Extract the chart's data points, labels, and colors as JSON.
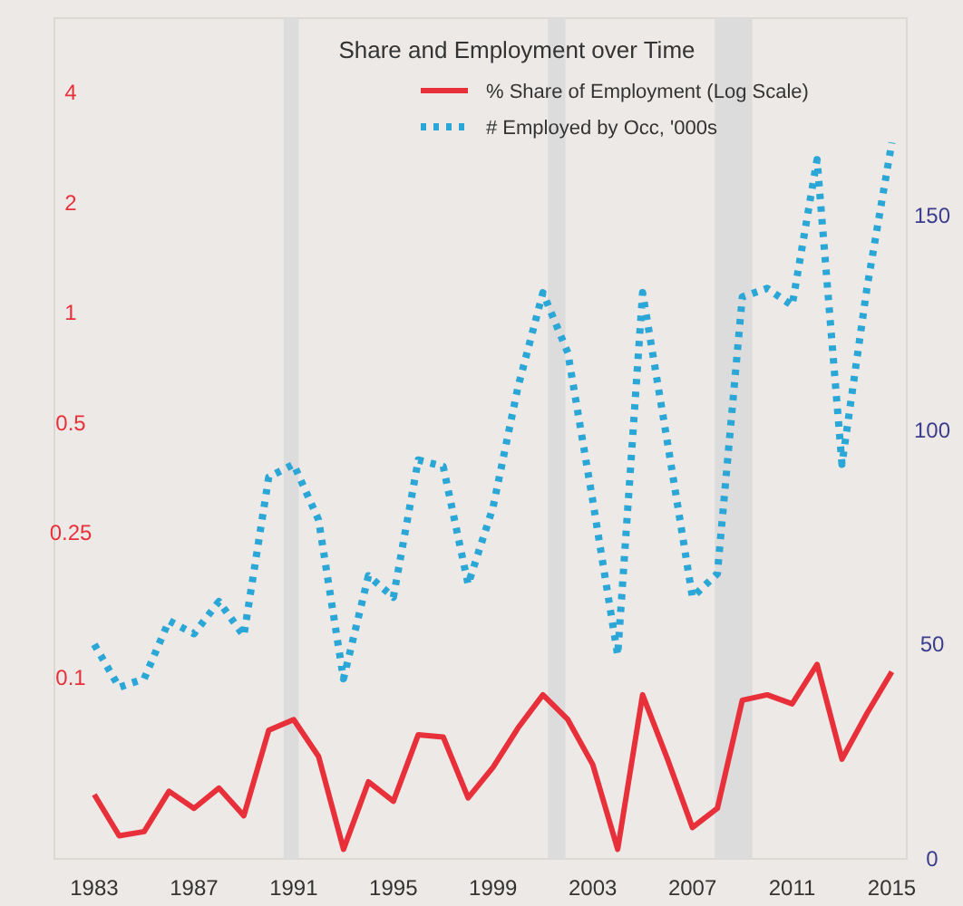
{
  "chart_data": {
    "type": "line",
    "title": "Share and Employment over Time",
    "x": [
      1983,
      1984,
      1985,
      1986,
      1987,
      1988,
      1989,
      1990,
      1991,
      1992,
      1993,
      1994,
      1995,
      1996,
      1997,
      1998,
      1999,
      2000,
      2001,
      2002,
      2003,
      2004,
      2005,
      2006,
      2007,
      2008,
      2009,
      2010,
      2011,
      2012,
      2013,
      2014,
      2015
    ],
    "series": [
      {
        "name": "% Share of Employment (Log Scale)",
        "color": "#e8303a",
        "line_style": "solid",
        "values": [
          0.048,
          0.037,
          0.038,
          0.049,
          0.044,
          0.05,
          0.042,
          0.072,
          0.077,
          0.061,
          0.034,
          0.052,
          0.046,
          0.07,
          0.069,
          0.047,
          0.057,
          0.073,
          0.09,
          0.077,
          0.058,
          0.034,
          0.09,
          0.06,
          0.039,
          0.044,
          0.087,
          0.09,
          0.085,
          0.109,
          0.06,
          0.08,
          0.104
        ]
      },
      {
        "name": "# Employed by Occ, '000s",
        "color": "#2aa7d6",
        "line_style": "dotted",
        "axis": "y2",
        "values": [
          50,
          40,
          42,
          55.5,
          52.5,
          60,
          52,
          89,
          92,
          79,
          42,
          66,
          61,
          93,
          91.5,
          64,
          82,
          110,
          132,
          118,
          83.5,
          47.5,
          132,
          97,
          61,
          66.5,
          131,
          133,
          129,
          163,
          92,
          133,
          167
        ]
      }
    ],
    "xlim": [
      1981.4,
      2015.6
    ],
    "xticks": [
      1983,
      1987,
      1991,
      1995,
      1999,
      2003,
      2007,
      2011,
      2015
    ],
    "ylim": [
      0.032,
      6.4
    ],
    "yticks": [
      0.1,
      0.25,
      0.5,
      1,
      2,
      4
    ],
    "log": "y",
    "y2lim": [
      0,
      196
    ],
    "y2ticks": [
      0,
      50,
      100,
      150
    ],
    "bands": [
      {
        "axis": "x",
        "from": 1990.6,
        "to": 1991.2,
        "color": "#dcdcdc"
      },
      {
        "axis": "x",
        "from": 2001.2,
        "to": 2001.9,
        "color": "#dcdcdc"
      },
      {
        "axis": "x",
        "from": 2007.9,
        "to": 2009.4,
        "color": "#dcdcdc"
      }
    ],
    "grid": false,
    "legend": "top right"
  }
}
